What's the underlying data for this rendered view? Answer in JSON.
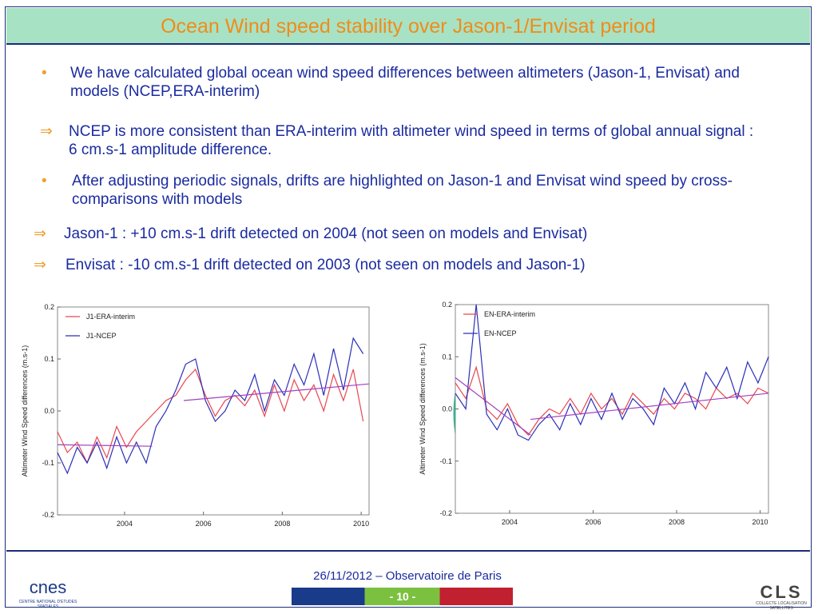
{
  "title": "Ocean Wind speed stability over Jason-1/Envisat period",
  "items": [
    {
      "marker": "•",
      "text": "We have calculated global ocean wind speed differences between altimeters (Jason-1, Envisat)  and models (NCEP,ERA-interim)"
    },
    {
      "marker": "⇒",
      "text": "NCEP is more consistent than ERA-interim with altimeter wind speed in terms of global annual signal : 6 cm.s-1 amplitude difference."
    },
    {
      "marker": "•",
      "text": "After adjusting periodic signals, drifts are highlighted on Jason-1 and Envisat wind speed by cross-comparisons with models"
    },
    {
      "marker": "⇒",
      "text": "Jason-1 : +10 cm.s-1 drift detected on 2004 (not seen on models and Envisat)"
    },
    {
      "marker": "⇒",
      "text": "Envisat :  -10 cm.s-1 drift detected on 2003 (not seen on models and Jason-1)"
    }
  ],
  "footer": {
    "date": "26/11/2012 – Observatoire de Paris",
    "page": "- 10 -",
    "logo_left": "cnes",
    "logo_left_sub": "CENTRE NATIONAL D'ETUDES SPATIALES",
    "logo_right": "CLS",
    "logo_right_sub": "COLLECTE LOCALISATION SATELLITES"
  },
  "chart_data": [
    {
      "type": "line",
      "ylabel": "Altimeter Wind Speed differences (m.s-1)",
      "xlim": [
        2002.3,
        2010.2
      ],
      "xticks": [
        2004,
        2006,
        2008,
        2010
      ],
      "ylim": [
        -0.2,
        0.2
      ],
      "yticks": [
        -0.2,
        -0.1,
        {
          "value": 0,
          "label": "0.0"
        },
        0.1,
        0.2
      ],
      "legend": "upper left",
      "x": [
        2002.3,
        2002.55,
        2002.8,
        2003.05,
        2003.3,
        2003.55,
        2003.8,
        2004.05,
        2004.3,
        2004.55,
        2004.8,
        2005.05,
        2005.3,
        2005.55,
        2005.8,
        2006.05,
        2006.3,
        2006.55,
        2006.8,
        2007.05,
        2007.3,
        2007.55,
        2007.8,
        2008.05,
        2008.3,
        2008.55,
        2008.8,
        2009.05,
        2009.3,
        2009.55,
        2009.8,
        2010.05
      ],
      "series": [
        {
          "name": "J1-ERA-interim",
          "color": "#e8474f",
          "values": [
            -0.04,
            -0.08,
            -0.06,
            -0.1,
            -0.05,
            -0.09,
            -0.03,
            -0.07,
            -0.04,
            -0.02,
            0.0,
            0.02,
            0.03,
            0.06,
            0.08,
            0.03,
            -0.01,
            0.02,
            0.03,
            0.01,
            0.04,
            -0.01,
            0.05,
            0.0,
            0.06,
            0.02,
            0.05,
            0.0,
            0.07,
            0.02,
            0.08,
            -0.02
          ]
        },
        {
          "name": "J1-NCEP",
          "color": "#2b2fb8",
          "values": [
            -0.08,
            -0.12,
            -0.07,
            -0.1,
            -0.06,
            -0.11,
            -0.05,
            -0.1,
            -0.06,
            -0.1,
            -0.03,
            0.0,
            0.04,
            0.09,
            0.1,
            0.02,
            -0.02,
            0.0,
            0.04,
            0.02,
            0.07,
            0.0,
            0.06,
            0.03,
            0.09,
            0.05,
            0.11,
            0.03,
            0.12,
            0.04,
            0.14,
            0.11
          ]
        }
      ],
      "fit_lines": [
        {
          "color": "#a040c0",
          "x": [
            2002.3,
            2004.7
          ],
          "values": [
            -0.065,
            -0.068
          ]
        },
        {
          "color": "#a040c0",
          "x": [
            2005.5,
            2010.2
          ],
          "values": [
            0.02,
            0.052
          ]
        }
      ]
    },
    {
      "type": "line",
      "ylabel": "Altimeter Wind Speed differences (m.s-1)",
      "xlim": [
        2002.7,
        2010.2
      ],
      "xticks": [
        2004,
        2006,
        2008,
        2010
      ],
      "ylim": [
        -0.2,
        0.2
      ],
      "yticks": [
        -0.2,
        -0.1,
        {
          "value": 0,
          "label": "0.0"
        },
        0.1,
        0.2
      ],
      "legend": "upper left",
      "x": [
        2002.7,
        2002.95,
        2003.2,
        2003.45,
        2003.7,
        2003.95,
        2004.2,
        2004.45,
        2004.7,
        2004.95,
        2005.2,
        2005.45,
        2005.7,
        2005.95,
        2006.2,
        2006.45,
        2006.7,
        2006.95,
        2007.2,
        2007.45,
        2007.7,
        2007.95,
        2008.2,
        2008.45,
        2008.7,
        2008.95,
        2009.2,
        2009.45,
        2009.7,
        2009.95,
        2010.2
      ],
      "series": [
        {
          "name": "EN-ERA-interim",
          "color": "#e8474f",
          "values": [
            0.05,
            0.02,
            0.08,
            0.0,
            -0.02,
            0.01,
            -0.03,
            -0.05,
            -0.02,
            0.0,
            -0.01,
            0.02,
            -0.01,
            0.03,
            0.0,
            0.02,
            -0.01,
            0.03,
            0.01,
            -0.01,
            0.02,
            0.0,
            0.03,
            0.02,
            0.0,
            0.04,
            0.02,
            0.03,
            0.01,
            0.04,
            0.03
          ]
        },
        {
          "name": "EN-NCEP",
          "color": "#2b2fb8",
          "values": [
            0.03,
            0.0,
            0.2,
            -0.01,
            -0.04,
            0.0,
            -0.05,
            -0.06,
            -0.03,
            -0.01,
            -0.04,
            0.01,
            -0.03,
            0.02,
            -0.02,
            0.03,
            -0.02,
            0.02,
            0.0,
            -0.03,
            0.04,
            0.01,
            0.05,
            0.0,
            0.07,
            0.04,
            0.08,
            0.02,
            0.09,
            0.05,
            0.1
          ]
        }
      ],
      "fit_lines": [
        {
          "color": "#a040c0",
          "x": [
            2002.7,
            2004.5
          ],
          "values": [
            0.06,
            -0.05
          ]
        },
        {
          "color": "#a040c0",
          "x": [
            2004.5,
            2010.2
          ],
          "values": [
            -0.02,
            0.03
          ]
        }
      ]
    }
  ]
}
